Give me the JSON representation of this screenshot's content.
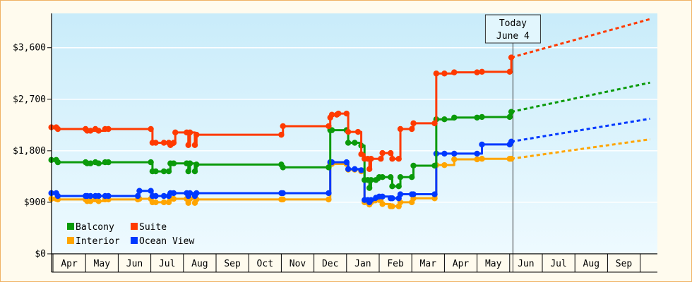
{
  "chart_data": {
    "type": "line",
    "title": "",
    "xlabel": "",
    "ylabel": "",
    "ylim": [
      0,
      4200
    ],
    "y_ticks": [
      0,
      900,
      1800,
      2700,
      3600
    ],
    "y_tick_labels": [
      "$0",
      "$900",
      "$1,800",
      "$2,700",
      "$3,600"
    ],
    "x_months": [
      "Apr",
      "May",
      "Jun",
      "Jul",
      "Aug",
      "Sep",
      "Oct",
      "Nov",
      "Dec",
      "Jan",
      "Feb",
      "Mar",
      "Apr",
      "May",
      "Jun",
      "Jul",
      "Aug",
      "Sep"
    ],
    "x_range": [
      0,
      18.3
    ],
    "today": {
      "label_line1": "Today",
      "label_line2": "June 4",
      "x": 14.1
    },
    "legend": {
      "placement": "bottom-left"
    },
    "colors": {
      "Balcony": "#0a9a0a",
      "Suite": "#ff3a00",
      "Interior": "#ffa500",
      "Ocean View": "#0038ff"
    },
    "series": [
      {
        "name": "Suite",
        "points": [
          [
            -0.05,
            2210
          ],
          [
            0.1,
            2210
          ],
          [
            0.15,
            2180
          ],
          [
            1.0,
            2180
          ],
          [
            1.05,
            2150
          ],
          [
            1.15,
            2150
          ],
          [
            1.3,
            2180
          ],
          [
            1.4,
            2150
          ],
          [
            1.6,
            2180
          ],
          [
            1.7,
            2180
          ],
          [
            3.0,
            2180
          ],
          [
            3.05,
            1940
          ],
          [
            3.15,
            1940
          ],
          [
            3.4,
            1940
          ],
          [
            3.55,
            1940
          ],
          [
            3.6,
            1900
          ],
          [
            3.7,
            1940
          ],
          [
            3.75,
            2120
          ],
          [
            4.1,
            2120
          ],
          [
            4.15,
            1900
          ],
          [
            4.2,
            2120
          ],
          [
            4.35,
            1900
          ],
          [
            4.4,
            2080
          ],
          [
            7.0,
            2080
          ],
          [
            7.05,
            2230
          ],
          [
            8.45,
            2230
          ],
          [
            8.5,
            2380
          ],
          [
            8.55,
            2430
          ],
          [
            8.7,
            2430
          ],
          [
            8.75,
            2450
          ],
          [
            9.0,
            2450
          ],
          [
            9.05,
            2130
          ],
          [
            9.35,
            2130
          ],
          [
            9.45,
            1740
          ],
          [
            9.55,
            1660
          ],
          [
            9.65,
            1660
          ],
          [
            9.7,
            1480
          ],
          [
            9.75,
            1660
          ],
          [
            10.05,
            1660
          ],
          [
            10.1,
            1760
          ],
          [
            10.35,
            1760
          ],
          [
            10.4,
            1660
          ],
          [
            10.6,
            1660
          ],
          [
            10.65,
            2180
          ],
          [
            11.0,
            2180
          ],
          [
            11.05,
            2280
          ],
          [
            11.7,
            2280
          ],
          [
            11.75,
            3150
          ],
          [
            12.0,
            3150
          ],
          [
            12.3,
            3170
          ],
          [
            13.0,
            3170
          ],
          [
            13.15,
            3180
          ],
          [
            14.0,
            3180
          ],
          [
            14.05,
            3430
          ]
        ]
      },
      {
        "name": "Balcony",
        "points": [
          [
            -0.05,
            1640
          ],
          [
            0.1,
            1640
          ],
          [
            0.15,
            1600
          ],
          [
            1.0,
            1600
          ],
          [
            1.05,
            1580
          ],
          [
            1.15,
            1580
          ],
          [
            1.3,
            1600
          ],
          [
            1.4,
            1580
          ],
          [
            1.6,
            1600
          ],
          [
            1.7,
            1600
          ],
          [
            3.0,
            1600
          ],
          [
            3.05,
            1440
          ],
          [
            3.15,
            1440
          ],
          [
            3.4,
            1440
          ],
          [
            3.55,
            1440
          ],
          [
            3.6,
            1580
          ],
          [
            3.7,
            1580
          ],
          [
            4.1,
            1580
          ],
          [
            4.15,
            1440
          ],
          [
            4.2,
            1580
          ],
          [
            4.35,
            1440
          ],
          [
            4.4,
            1560
          ],
          [
            7.0,
            1560
          ],
          [
            7.05,
            1510
          ],
          [
            8.45,
            1510
          ],
          [
            8.5,
            2160
          ],
          [
            8.55,
            2160
          ],
          [
            9.0,
            2160
          ],
          [
            9.05,
            1940
          ],
          [
            9.25,
            1940
          ],
          [
            9.45,
            1890
          ],
          [
            9.55,
            1290
          ],
          [
            9.65,
            1290
          ],
          [
            9.7,
            1150
          ],
          [
            9.75,
            1290
          ],
          [
            9.9,
            1290
          ],
          [
            10.0,
            1340
          ],
          [
            10.1,
            1340
          ],
          [
            10.35,
            1340
          ],
          [
            10.4,
            1180
          ],
          [
            10.6,
            1180
          ],
          [
            10.65,
            1340
          ],
          [
            11.0,
            1340
          ],
          [
            11.05,
            1540
          ],
          [
            11.7,
            1540
          ],
          [
            11.75,
            2350
          ],
          [
            12.0,
            2350
          ],
          [
            12.3,
            2380
          ],
          [
            13.0,
            2380
          ],
          [
            13.15,
            2390
          ],
          [
            14.0,
            2390
          ],
          [
            14.05,
            2480
          ]
        ]
      },
      {
        "name": "Ocean View",
        "points": [
          [
            -0.05,
            1060
          ],
          [
            0.1,
            1060
          ],
          [
            0.15,
            1010
          ],
          [
            1.0,
            1010
          ],
          [
            1.05,
            1010
          ],
          [
            1.15,
            1010
          ],
          [
            1.3,
            1010
          ],
          [
            1.4,
            1010
          ],
          [
            1.6,
            1010
          ],
          [
            1.7,
            1010
          ],
          [
            2.6,
            1010
          ],
          [
            2.65,
            1100
          ],
          [
            3.0,
            1100
          ],
          [
            3.05,
            1010
          ],
          [
            3.15,
            1010
          ],
          [
            3.4,
            1010
          ],
          [
            3.55,
            1010
          ],
          [
            3.6,
            1060
          ],
          [
            3.7,
            1060
          ],
          [
            4.1,
            1060
          ],
          [
            4.15,
            1010
          ],
          [
            4.2,
            1060
          ],
          [
            4.35,
            1010
          ],
          [
            4.4,
            1060
          ],
          [
            7.0,
            1060
          ],
          [
            7.05,
            1060
          ],
          [
            8.45,
            1060
          ],
          [
            8.5,
            1600
          ],
          [
            8.55,
            1600
          ],
          [
            9.0,
            1600
          ],
          [
            9.05,
            1480
          ],
          [
            9.25,
            1480
          ],
          [
            9.45,
            1460
          ],
          [
            9.55,
            940
          ],
          [
            9.65,
            940
          ],
          [
            9.7,
            900
          ],
          [
            9.75,
            940
          ],
          [
            9.9,
            980
          ],
          [
            10.0,
            1000
          ],
          [
            10.1,
            1000
          ],
          [
            10.35,
            970
          ],
          [
            10.4,
            970
          ],
          [
            10.6,
            970
          ],
          [
            10.65,
            1040
          ],
          [
            11.0,
            1040
          ],
          [
            11.05,
            1040
          ],
          [
            11.7,
            1040
          ],
          [
            11.75,
            1750
          ],
          [
            12.0,
            1750
          ],
          [
            12.3,
            1750
          ],
          [
            13.0,
            1750
          ],
          [
            13.15,
            1910
          ],
          [
            14.0,
            1910
          ],
          [
            14.05,
            1960
          ]
        ]
      },
      {
        "name": "Interior",
        "points": [
          [
            -0.05,
            960
          ],
          [
            0.1,
            960
          ],
          [
            0.15,
            950
          ],
          [
            1.0,
            950
          ],
          [
            1.05,
            920
          ],
          [
            1.15,
            920
          ],
          [
            1.3,
            950
          ],
          [
            1.4,
            920
          ],
          [
            1.6,
            950
          ],
          [
            1.7,
            950
          ],
          [
            2.6,
            950
          ],
          [
            2.65,
            960
          ],
          [
            3.0,
            960
          ],
          [
            3.05,
            900
          ],
          [
            3.15,
            900
          ],
          [
            3.4,
            900
          ],
          [
            3.55,
            900
          ],
          [
            3.6,
            960
          ],
          [
            3.7,
            960
          ],
          [
            4.1,
            960
          ],
          [
            4.15,
            890
          ],
          [
            4.2,
            960
          ],
          [
            4.35,
            890
          ],
          [
            4.4,
            950
          ],
          [
            7.0,
            950
          ],
          [
            7.05,
            950
          ],
          [
            8.45,
            950
          ],
          [
            8.5,
            1570
          ],
          [
            8.55,
            1570
          ],
          [
            9.0,
            1570
          ],
          [
            9.05,
            1470
          ],
          [
            9.25,
            1470
          ],
          [
            9.45,
            1440
          ],
          [
            9.55,
            900
          ],
          [
            9.65,
            900
          ],
          [
            9.7,
            860
          ],
          [
            9.75,
            900
          ],
          [
            9.9,
            940
          ],
          [
            10.0,
            940
          ],
          [
            10.1,
            870
          ],
          [
            10.35,
            830
          ],
          [
            10.4,
            830
          ],
          [
            10.6,
            830
          ],
          [
            10.65,
            900
          ],
          [
            11.0,
            900
          ],
          [
            11.05,
            970
          ],
          [
            11.7,
            970
          ],
          [
            11.75,
            1550
          ],
          [
            12.0,
            1550
          ],
          [
            12.3,
            1650
          ],
          [
            13.0,
            1650
          ],
          [
            13.15,
            1660
          ],
          [
            14.0,
            1660
          ],
          [
            14.05,
            1660
          ]
        ]
      }
    ],
    "projections": [
      {
        "name": "Suite",
        "from": [
          14.05,
          3430
        ],
        "to": [
          18.3,
          4100
        ]
      },
      {
        "name": "Balcony",
        "from": [
          14.05,
          2480
        ],
        "to": [
          18.3,
          2990
        ]
      },
      {
        "name": "Ocean View",
        "from": [
          14.05,
          1960
        ],
        "to": [
          18.3,
          2360
        ]
      },
      {
        "name": "Interior",
        "from": [
          14.05,
          1660
        ],
        "to": [
          18.3,
          2000
        ]
      }
    ]
  },
  "legend_items": [
    {
      "name": "Balcony",
      "label": "Balcony"
    },
    {
      "name": "Suite",
      "label": "Suite"
    },
    {
      "name": "Interior",
      "label": "Interior"
    },
    {
      "name": "Ocean View",
      "label": "Ocean View"
    }
  ]
}
